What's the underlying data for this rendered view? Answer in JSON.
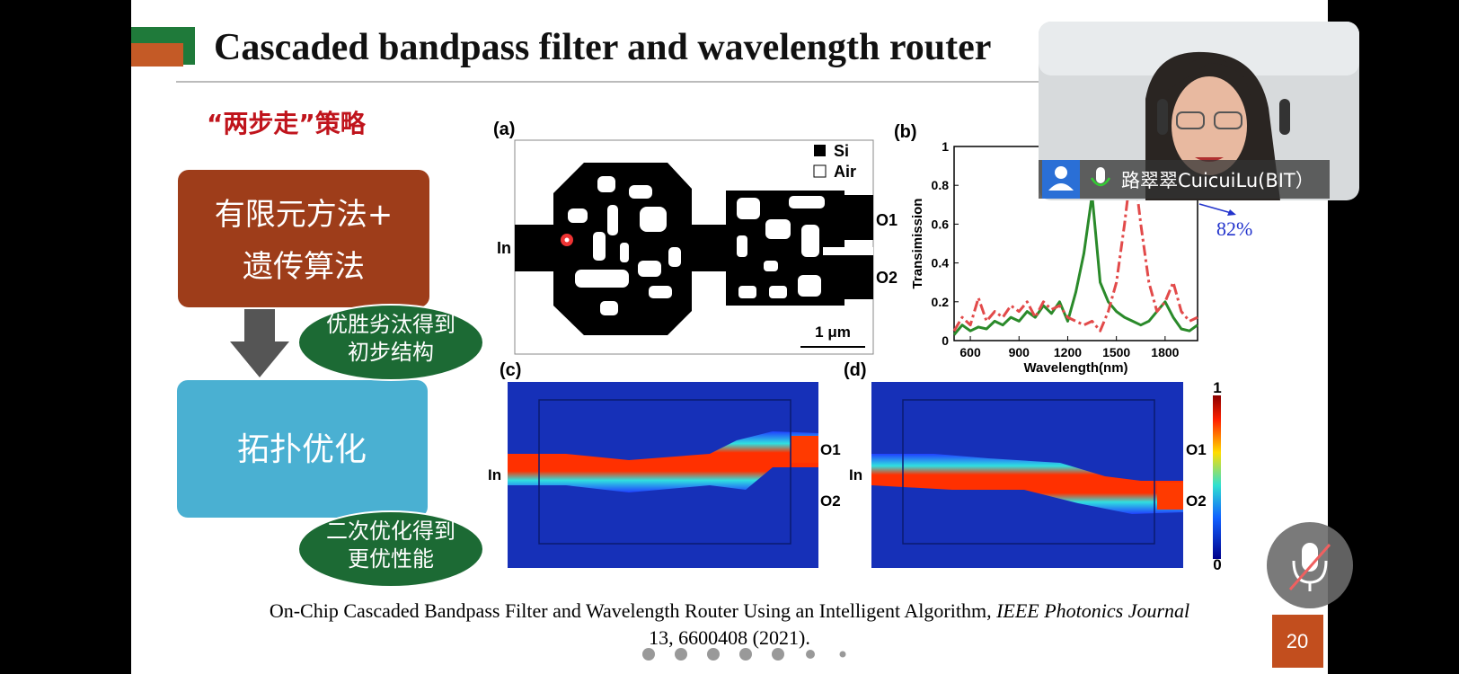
{
  "slide": {
    "title": "Cascaded bandpass filter and wavelength router",
    "strategy_heading": "“两步走”策略",
    "steps": [
      {
        "lines": [
          "有限元方法+",
          "遗传算法"
        ]
      },
      {
        "lines": [
          "拓扑优化"
        ]
      }
    ],
    "notes": [
      {
        "lines": [
          "优胜劣汰得到",
          "初步结构"
        ]
      },
      {
        "lines": [
          "二次优化得到",
          "更优性能"
        ]
      }
    ],
    "figure_a": {
      "label": "(a)",
      "port_in": "In",
      "port_o1": "O1",
      "port_o2": "O2",
      "legend": [
        "Si",
        "Air"
      ],
      "scale_bar": "1 μm"
    },
    "figure_b": {
      "label": "(b)",
      "type": "line",
      "y_label": "Transimission",
      "x_label": "Wavelength(nm)",
      "annotation": "82%",
      "xlim": [
        500,
        2000
      ],
      "ylim": [
        0,
        1
      ],
      "xticks": [
        600,
        900,
        1200,
        1500,
        1800
      ],
      "yticks": [
        0,
        0.2,
        0.4,
        0.6,
        0.8,
        1
      ],
      "x": [
        500,
        550,
        600,
        650,
        700,
        750,
        800,
        850,
        900,
        950,
        1000,
        1050,
        1100,
        1150,
        1200,
        1250,
        1300,
        1350,
        1400,
        1450,
        1500,
        1550,
        1600,
        1650,
        1700,
        1750,
        1800,
        1850,
        1900,
        1950,
        2000
      ],
      "series": [
        {
          "color": "#2a8a2a",
          "dash": false,
          "values": [
            0.03,
            0.08,
            0.05,
            0.07,
            0.06,
            0.1,
            0.08,
            0.12,
            0.1,
            0.15,
            0.12,
            0.18,
            0.14,
            0.2,
            0.1,
            0.25,
            0.45,
            0.75,
            0.3,
            0.2,
            0.15,
            0.12,
            0.1,
            0.08,
            0.1,
            0.15,
            0.2,
            0.12,
            0.06,
            0.05,
            0.08
          ]
        },
        {
          "color": "#e24a4a",
          "dash": true,
          "values": [
            0.05,
            0.12,
            0.08,
            0.22,
            0.1,
            0.15,
            0.12,
            0.18,
            0.15,
            0.2,
            0.12,
            0.2,
            0.16,
            0.18,
            0.12,
            0.1,
            0.08,
            0.1,
            0.05,
            0.15,
            0.3,
            0.6,
            0.95,
            0.6,
            0.3,
            0.15,
            0.2,
            0.3,
            0.15,
            0.1,
            0.12
          ]
        }
      ]
    },
    "figure_c": {
      "label": "(c)",
      "port_in": "In",
      "port_o1": "O1",
      "port_o2": "O2"
    },
    "figure_d": {
      "label": "(d)",
      "port_in": "In",
      "port_o1": "O1",
      "port_o2": "O2"
    },
    "colorbar": {
      "max": 1,
      "min": 0
    },
    "citation": {
      "text": "On-Chip Cascaded Bandpass Filter and Wavelength Router Using an Intelligent Algorithm,",
      "journal": "IEEE Photonics Journal",
      "details": "13, 6600408 (2021)."
    },
    "page_number": 20
  },
  "video": {
    "participant_name": "路翠翠CuicuiLu(BIT）"
  }
}
